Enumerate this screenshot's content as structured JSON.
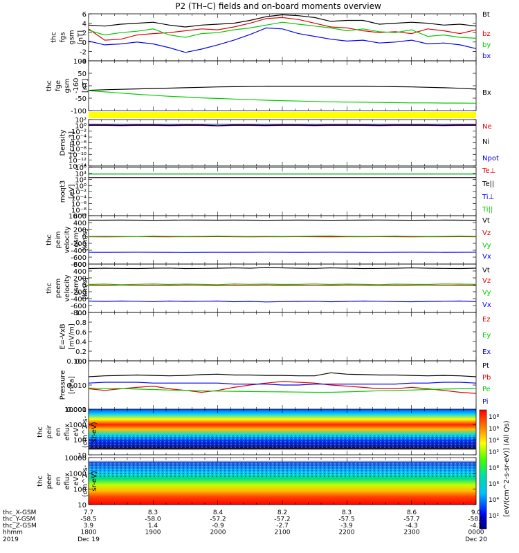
{
  "title": "P2 (TH–C) fields and on-board moments overview",
  "colors": {
    "black": "#000000",
    "red": "#e00000",
    "green": "#00cc00",
    "blue": "#0000ee",
    "magenta": "#a000a0",
    "yellow": "#ffff00"
  },
  "chart_data": [
    {
      "type": "line",
      "ylabel": [
        "thc",
        "fgs",
        "gsm",
        "[nT]"
      ],
      "ylim": [
        -4,
        6
      ],
      "yticks": [
        "6",
        "4",
        "2",
        "0",
        "-2",
        "-4"
      ],
      "series": [
        {
          "name": "Bt",
          "color": "#000000",
          "values": [
            3.6,
            3.4,
            3.8,
            4.0,
            4.2,
            3.6,
            3.2,
            3.6,
            3.8,
            4.0,
            4.6,
            5.4,
            5.8,
            5.6,
            5.2,
            4.4,
            4.6,
            4.6,
            3.8,
            4.0,
            4.2,
            4.0,
            3.6,
            3.8,
            3.4
          ]
        },
        {
          "name": "bz",
          "color": "#e00000",
          "values": [
            2.8,
            0.4,
            0.6,
            1.5,
            1.8,
            2.0,
            2.4,
            2.8,
            2.6,
            3.2,
            4.0,
            5.0,
            5.2,
            4.8,
            4.0,
            3.2,
            3.0,
            2.4,
            2.0,
            2.2,
            1.8,
            2.8,
            2.4,
            1.8,
            2.6
          ]
        },
        {
          "name": "by",
          "color": "#00cc00",
          "values": [
            2.5,
            1.5,
            2.0,
            2.3,
            2.8,
            1.5,
            1.0,
            1.8,
            2.0,
            2.6,
            3.0,
            3.6,
            4.2,
            3.8,
            3.4,
            3.0,
            2.4,
            2.8,
            2.2,
            2.0,
            2.6,
            1.2,
            1.5,
            1.0,
            0.8
          ]
        },
        {
          "name": "bx",
          "color": "#0000ee",
          "values": [
            0.2,
            -0.6,
            -0.4,
            0.0,
            -0.4,
            -1.2,
            -2.2,
            -1.5,
            -0.6,
            0.4,
            1.6,
            3.0,
            2.8,
            1.8,
            1.2,
            0.6,
            0.2,
            0.4,
            -0.2,
            0.0,
            0.4,
            -0.4,
            -0.2,
            -0.6,
            -1.4
          ]
        }
      ]
    },
    {
      "type": "line",
      "ylabel": [
        "thc",
        "fge",
        "gsm",
        "-160",
        "[nT]"
      ],
      "ylim": [
        -150,
        100
      ],
      "yticks": [
        "100",
        "50",
        "0",
        "-50",
        "-100"
      ],
      "series": [
        {
          "name": "Bx",
          "color": "#000000",
          "values": [
            -48,
            -45,
            -43,
            -41,
            -39,
            -37,
            -35,
            -33,
            -31,
            -30,
            -29,
            -28,
            -28,
            -28,
            -28,
            -28,
            -28,
            -28,
            -29,
            -30,
            -31,
            -33,
            -35,
            -38,
            -42
          ]
        },
        {
          "name": "",
          "color": "#00cc00",
          "values": [
            -50,
            -56,
            -62,
            -68,
            -73,
            -78,
            -82,
            -86,
            -89,
            -92,
            -95,
            -98,
            -100,
            -102,
            -104,
            -106,
            -107,
            -108,
            -109,
            -110,
            -111,
            -111,
            -112,
            -112,
            -113
          ]
        }
      ]
    },
    {
      "type": "line",
      "ylabel": [
        "Density",
        "[cm-3]"
      ],
      "ylim": [
        -14,
        2
      ],
      "yticks": [
        "10²",
        "10⁰",
        "10⁻²",
        "10⁻⁴",
        "10⁻⁶",
        "10⁻⁸",
        "10⁻¹⁰",
        "10⁻¹²",
        "10⁻¹⁴"
      ],
      "series": [
        {
          "name": "Ne",
          "color": "#e00000",
          "values": [
            0.0,
            0.0,
            -0.1,
            0.0,
            0.0,
            -0.1,
            0.0,
            0.0,
            -0.2,
            0.0,
            0.0,
            -0.1,
            0.0,
            0.0,
            -0.1,
            0.0,
            0.0,
            0.0,
            -0.1,
            0.0,
            0.0,
            0.0,
            -0.1,
            0.0,
            0.0
          ]
        },
        {
          "name": "Ni",
          "color": "#000000",
          "values": [
            0.1,
            0.1,
            0.0,
            0.1,
            0.1,
            0.0,
            0.1,
            0.1,
            -0.1,
            0.1,
            0.1,
            0.0,
            0.1,
            0.1,
            0.0,
            0.1,
            0.1,
            0.1,
            0.0,
            0.1,
            0.1,
            0.1,
            0.0,
            0.1,
            0.1
          ]
        },
        {
          "name": "Npot",
          "color": "#0000ee",
          "values": [
            0.4,
            0.4,
            0.4,
            0.4,
            0.4,
            0.4,
            0.4,
            0.4,
            0.4,
            0.4,
            0.4,
            0.4,
            0.4,
            0.4,
            0.4,
            0.4,
            0.4,
            0.4,
            0.4,
            0.4,
            0.4,
            0.4,
            0.4,
            0.4,
            0.4
          ]
        }
      ]
    },
    {
      "type": "line",
      "ylabel": [
        "moqt3",
        "[eV]"
      ],
      "ylim": [
        -10,
        6
      ],
      "yticks": [
        "10⁶",
        "10⁴",
        "10²",
        "10⁰",
        "10⁻²",
        "10⁻⁴",
        "10⁻⁶",
        "10⁻⁸",
        "10⁻¹⁰"
      ],
      "series": [
        {
          "name": "Te⊥",
          "color": "#e00000",
          "values": [
            2.6,
            2.6,
            2.6,
            2.6,
            2.6,
            2.6,
            2.6,
            2.6,
            2.6,
            2.6,
            2.6,
            2.6,
            2.6,
            2.6,
            2.6,
            2.6,
            2.6,
            2.6,
            2.6,
            2.6,
            2.6,
            2.6,
            2.6,
            2.6,
            2.6
          ]
        },
        {
          "name": "Te||",
          "color": "#000000",
          "values": [
            2.6,
            2.6,
            2.6,
            2.6,
            2.6,
            2.6,
            2.6,
            2.6,
            2.6,
            2.6,
            2.6,
            2.6,
            2.6,
            2.6,
            2.6,
            2.6,
            2.6,
            2.6,
            2.6,
            2.6,
            2.6,
            2.6,
            2.6,
            2.6,
            2.6
          ]
        },
        {
          "name": "Ti⊥",
          "color": "#0000ee",
          "values": [
            3.8,
            3.8,
            3.8,
            3.8,
            3.8,
            3.8,
            3.8,
            3.8,
            3.8,
            3.8,
            3.8,
            3.8,
            3.8,
            3.8,
            3.8,
            3.8,
            3.8,
            3.8,
            3.8,
            3.8,
            3.8,
            3.8,
            3.8,
            3.8,
            3.8
          ]
        },
        {
          "name": "Ti||",
          "color": "#00cc00",
          "values": [
            3.8,
            3.8,
            3.8,
            3.8,
            3.8,
            3.8,
            3.8,
            3.8,
            3.8,
            3.8,
            3.8,
            3.8,
            3.8,
            3.8,
            3.8,
            3.8,
            3.8,
            3.8,
            3.8,
            3.8,
            3.8,
            3.8,
            3.8,
            3.8,
            3.8
          ]
        }
      ]
    },
    {
      "type": "line",
      "ylabel": [
        "thc",
        "peim",
        "velocity",
        "gsm",
        "[km/s]"
      ],
      "ylim": [
        -800,
        600
      ],
      "yticks": [
        "600",
        "400",
        "200",
        "0",
        "-200",
        "-400",
        "-600",
        "-800"
      ],
      "series": [
        {
          "name": "Vt",
          "color": "#000000",
          "values": [
            470,
            470,
            472,
            470,
            468,
            470,
            475,
            472,
            470,
            472,
            470,
            468,
            470,
            472,
            470,
            468,
            470,
            472,
            474,
            470,
            468,
            470,
            472,
            470,
            468
          ]
        },
        {
          "name": "Vz",
          "color": "#e00000",
          "values": [
            -10,
            -12,
            -10,
            -8,
            -10,
            -12,
            -10,
            -10,
            -8,
            -10,
            -12,
            -10,
            -10,
            -8,
            -10,
            -12,
            -10,
            -10,
            -8,
            -10,
            -12,
            -10,
            -10,
            -8,
            -10
          ]
        },
        {
          "name": "Vy",
          "color": "#00cc00",
          "values": [
            0,
            5,
            0,
            -5,
            10,
            5,
            0,
            5,
            10,
            5,
            0,
            5,
            0,
            5,
            10,
            15,
            5,
            0,
            5,
            10,
            5,
            0,
            5,
            10,
            5
          ]
        },
        {
          "name": "Vx",
          "color": "#0000ee",
          "values": [
            -460,
            -462,
            -460,
            -458,
            -460,
            -462,
            -465,
            -462,
            -460,
            -462,
            -460,
            -458,
            -460,
            -462,
            -460,
            -458,
            -460,
            -462,
            -464,
            -460,
            -458,
            -460,
            -462,
            -460,
            -458
          ]
        }
      ]
    },
    {
      "type": "line",
      "ylabel": [
        "thc",
        "peem",
        "velocity",
        "gsm",
        "[km/s]"
      ],
      "ylim": [
        -800,
        600
      ],
      "yticks": [
        "600",
        "400",
        "200",
        "0",
        "-200",
        "-400",
        "-600",
        "-800"
      ],
      "series": [
        {
          "name": "Vt",
          "color": "#000000",
          "values": [
            470,
            480,
            475,
            470,
            480,
            485,
            470,
            475,
            480,
            490,
            480,
            500,
            490,
            480,
            475,
            490,
            480,
            470,
            475,
            480,
            490,
            480,
            475,
            470,
            480
          ]
        },
        {
          "name": "Vz",
          "color": "#e00000",
          "values": [
            -10,
            -20,
            -5,
            -15,
            -10,
            -20,
            -5,
            -10,
            -25,
            -10,
            -15,
            -5,
            -20,
            -10,
            -15,
            -20,
            -5,
            -10,
            -15,
            -20,
            -10,
            -5,
            -15,
            -10,
            -20
          ]
        },
        {
          "name": "Vy",
          "color": "#00cc00",
          "values": [
            10,
            20,
            5,
            15,
            25,
            10,
            20,
            15,
            5,
            25,
            15,
            20,
            10,
            15,
            25,
            10,
            20,
            15,
            5,
            20,
            15,
            10,
            25,
            20,
            15
          ]
        },
        {
          "name": "Vx",
          "color": "#0000ee",
          "values": [
            -470,
            -480,
            -470,
            -475,
            -485,
            -470,
            -480,
            -475,
            -470,
            -490,
            -480,
            -495,
            -485,
            -480,
            -475,
            -490,
            -480,
            -470,
            -475,
            -485,
            -490,
            -480,
            -475,
            -470,
            -485
          ]
        }
      ]
    },
    {
      "type": "line",
      "ylabel": [
        "E=-VxB",
        "[mV/m]"
      ],
      "ylim": [
        0,
        1
      ],
      "yticks": [
        "1.0",
        "0.8",
        "0.6",
        "0.4",
        "0.2",
        "0.0"
      ],
      "series": [
        {
          "name": "Ez",
          "color": "#e00000",
          "values": []
        },
        {
          "name": "Ey",
          "color": "#00cc00",
          "values": []
        },
        {
          "name": "Ex",
          "color": "#0000ee",
          "values": []
        }
      ]
    },
    {
      "type": "line",
      "ylabel": [
        "Pressure",
        "[nPa]"
      ],
      "ylim": [
        0.001,
        0.1
      ],
      "yscale": "log",
      "yticks": [
        "0.100",
        "0.010",
        "0.001"
      ],
      "series": [
        {
          "name": "Pt",
          "color": "#000000",
          "values": [
            0.022,
            0.024,
            0.025,
            0.026,
            0.025,
            0.024,
            0.025,
            0.027,
            0.028,
            0.026,
            0.026,
            0.025,
            0.025,
            0.024,
            0.024,
            0.032,
            0.028,
            0.027,
            0.026,
            0.026,
            0.025,
            0.024,
            0.025,
            0.024,
            0.022
          ]
        },
        {
          "name": "Pb",
          "color": "#e00000",
          "values": [
            0.007,
            0.006,
            0.007,
            0.008,
            0.009,
            0.007,
            0.006,
            0.005,
            0.006,
            0.008,
            0.01,
            0.012,
            0.014,
            0.013,
            0.012,
            0.01,
            0.009,
            0.008,
            0.007,
            0.007,
            0.008,
            0.007,
            0.006,
            0.005,
            0.0045
          ]
        },
        {
          "name": "Pe",
          "color": "#00cc00",
          "values": [
            0.0075,
            0.0072,
            0.0072,
            0.0068,
            0.0065,
            0.0062,
            0.006,
            0.0058,
            0.0056,
            0.0055,
            0.0054,
            0.0053,
            0.0052,
            0.0051,
            0.005,
            0.005,
            0.0052,
            0.0055,
            0.0058,
            0.006,
            0.0062,
            0.0065,
            0.0068,
            0.007,
            0.0072
          ]
        },
        {
          "name": "Pi",
          "color": "#0000ee",
          "values": [
            0.012,
            0.013,
            0.013,
            0.013,
            0.012,
            0.012,
            0.012,
            0.012,
            0.012,
            0.011,
            0.011,
            0.011,
            0.01,
            0.01,
            0.011,
            0.011,
            0.011,
            0.011,
            0.011,
            0.011,
            0.012,
            0.012,
            0.013,
            0.013,
            0.012
          ]
        }
      ]
    },
    {
      "type": "heatmap",
      "ylabel": [
        "thc",
        "peir",
        "en",
        "eflux",
        "eV",
        "(cm^2-s-",
        "sr-eV)"
      ],
      "yticks": [
        "10000",
        "1000",
        "100",
        "10"
      ],
      "ylim": [
        5,
        20000
      ],
      "yscale": "log",
      "colorbar_ticks": [
        "10⁸",
        "10⁶",
        "10⁴",
        "10²"
      ]
    },
    {
      "type": "heatmap",
      "ylabel": [
        "thc",
        "peer",
        "en",
        "eflux",
        "eV",
        "(cm^2-s-",
        "sr-eV)"
      ],
      "yticks": [
        "10000",
        "1000",
        "100",
        "10"
      ],
      "ylim": [
        5,
        20000
      ],
      "yscale": "log",
      "colorbar_ticks": [
        "10⁸",
        "10⁶",
        "10⁴",
        "10²"
      ]
    }
  ],
  "colorbar_label": "[eV/(cm^2-s-sr-eV)] (All Qs)",
  "x_axis": {
    "rows": [
      {
        "label": "thc_X-GSM",
        "values": [
          "7.7",
          "8.3",
          "8.4",
          "8.2",
          "8.3",
          "8.6",
          "9.0"
        ]
      },
      {
        "label": "thc_Y-GSM",
        "values": [
          "-58.5",
          "-58.0",
          "-57.2",
          "-57.2",
          "-57.5",
          "-57.7",
          "-58.0"
        ]
      },
      {
        "label": "thc_Z-GSM",
        "values": [
          "3.9",
          "1.4",
          "-0.9",
          "-2.7",
          "-3.9",
          "-4.3",
          "-4.1"
        ]
      },
      {
        "label": "hhmm",
        "values": [
          "1800",
          "1900",
          "2000",
          "2100",
          "2200",
          "2300",
          "0000"
        ]
      }
    ],
    "year": "2019",
    "date_start": "Dec 19",
    "date_end": "Dec 20"
  }
}
